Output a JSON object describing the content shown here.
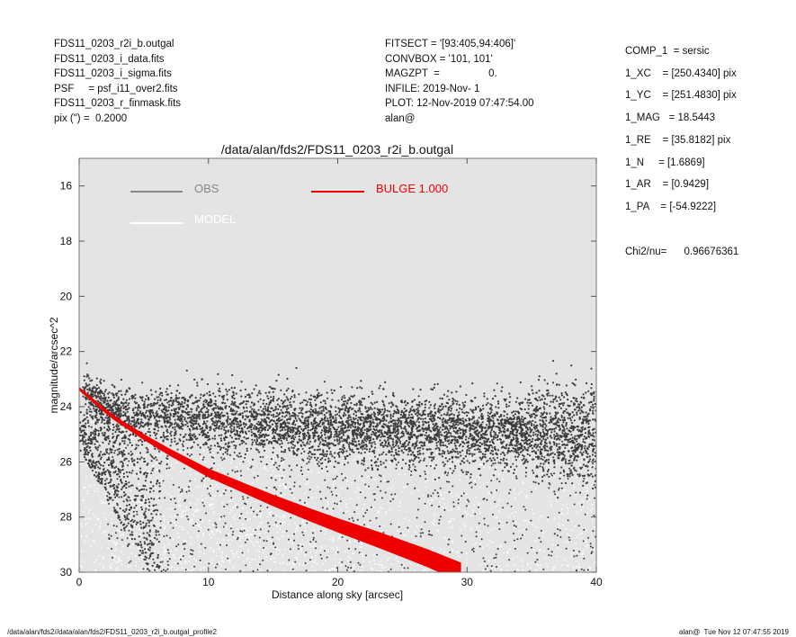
{
  "header_left": [
    "FDS11_0203_r2i_b.outgal",
    "FDS11_0203_i_data.fits",
    "FDS11_0203_i_sigma.fits",
    "PSF     = psf_i11_over2.fits",
    "FDS11_0203_r_finmask.fits",
    "pix (\") =  0.2000"
  ],
  "header_mid": [
    "FITSECT = '[93:405,94:406]'",
    "CONVBOX = '101, 101'",
    "MAGZPT  =                 0.",
    "INFILE: 2019-Nov- 1",
    "PLOT: 12-Nov-2019 07:47:54.00",
    "alan@"
  ],
  "side_panel": [
    "COMP_1  = sersic",
    "1_XC    = [250.4340] pix",
    "1_YC    = [251.4830] pix",
    "1_MAG   = 18.5443",
    "1_RE    = [35.8182] pix",
    "1_N     = [1.6869]",
    "1_AR    = [0.9429]",
    "1_PA    = [-54.9222]",
    "Chi2/nu=      0.96676361"
  ],
  "footer": {
    "left": "/data/alan/fds2//data/alan/fds2/FDS11_0203_r2i_b.outgal_profile2",
    "right": "alan@  Tue Nov 12 07:47:55 2019"
  },
  "colors": {
    "plot_bg": "#e4e4e4",
    "obs": "#3c3c3c",
    "obs_legend": "#888888",
    "model": "#ffffff",
    "bulge": "#ee0000"
  },
  "chart_data": {
    "type": "scatter",
    "title": "/data/alan/fds2/FDS11_0203_r2i_b.outgal",
    "xlabel": "Distance along sky [arcsec]",
    "ylabel": "magnitude/arcsec^2",
    "xlim": [
      0,
      40
    ],
    "ylim": [
      30,
      15
    ],
    "x_ticks": [
      0,
      10,
      20,
      30,
      40
    ],
    "y_ticks": [
      16,
      18,
      20,
      22,
      24,
      26,
      28,
      30
    ],
    "legend": [
      {
        "name": "OBS",
        "color": "#888888"
      },
      {
        "name": "MODEL",
        "color": "#ffffff"
      },
      {
        "name": "BULGE  1.000",
        "color": "#ee0000"
      }
    ],
    "series": [
      {
        "name": "OBS",
        "kind": "points",
        "description_points": [
          [
            0.3,
            22.9
          ],
          [
            1,
            23.3
          ],
          [
            2,
            23.7
          ],
          [
            5,
            24.0
          ],
          [
            10,
            24.2
          ],
          [
            20,
            24.4
          ],
          [
            30,
            24.6
          ],
          [
            40,
            24.7
          ]
        ],
        "scatter_band": [
          23.6,
          25.5
        ],
        "faint_tail_to": 30
      },
      {
        "name": "MODEL",
        "kind": "points",
        "curve": [
          [
            0,
            23.3
          ],
          [
            2,
            24.2
          ],
          [
            5,
            25.2
          ],
          [
            10,
            26.5
          ],
          [
            15,
            27.5
          ],
          [
            20,
            28.5
          ],
          [
            25,
            29.4
          ],
          [
            28,
            30.0
          ]
        ],
        "scatter_to": 30
      },
      {
        "name": "BULGE  1.000",
        "kind": "line",
        "x": [
          0,
          1,
          2,
          3,
          4,
          5,
          7,
          10,
          13,
          15,
          18,
          20,
          23,
          25,
          27,
          29.5
        ],
        "y": [
          23.35,
          23.75,
          24.15,
          24.5,
          24.8,
          25.1,
          25.65,
          26.4,
          27.0,
          27.4,
          27.95,
          28.3,
          28.8,
          29.15,
          29.5,
          30.0
        ]
      }
    ]
  }
}
